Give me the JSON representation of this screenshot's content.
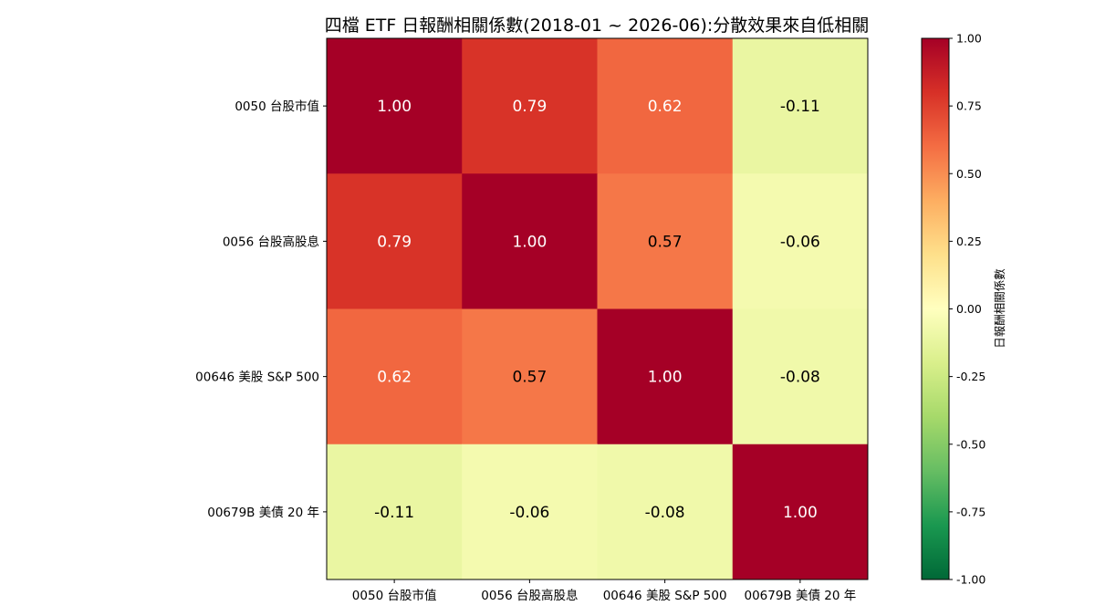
{
  "chart_data": {
    "type": "heatmap",
    "title": "四檔 ETF 日報酬相關係數(2018-01 ~ 2026-06):分散效果來自低相關",
    "rows": [
      "0050 台股市值",
      "0056 台股高股息",
      "00646 美股 S&P 500",
      "00679B 美債 20 年"
    ],
    "columns": [
      "0050 台股市值",
      "0056 台股高股息",
      "00646 美股 S&P 500",
      "00679B 美債 20 年"
    ],
    "values": [
      [
        1.0,
        0.79,
        0.62,
        -0.11
      ],
      [
        0.79,
        1.0,
        0.57,
        -0.06
      ],
      [
        0.62,
        0.57,
        1.0,
        -0.08
      ],
      [
        -0.11,
        -0.06,
        -0.08,
        1.0
      ]
    ],
    "value_format": "2 decimals",
    "colormap": "RdYlGn_r",
    "vmin": -1.0,
    "vmax": 1.0,
    "colorbar": {
      "label": "日報酬相關係數",
      "ticks": [
        1.0,
        0.75,
        0.5,
        0.25,
        0.0,
        -0.25,
        -0.5,
        -0.75,
        -1.0
      ],
      "tick_labels": [
        "1.00",
        "0.75",
        "0.50",
        "0.25",
        "0.00",
        "-0.25",
        "-0.50",
        "-0.75",
        "-1.00"
      ]
    },
    "grid": false
  }
}
